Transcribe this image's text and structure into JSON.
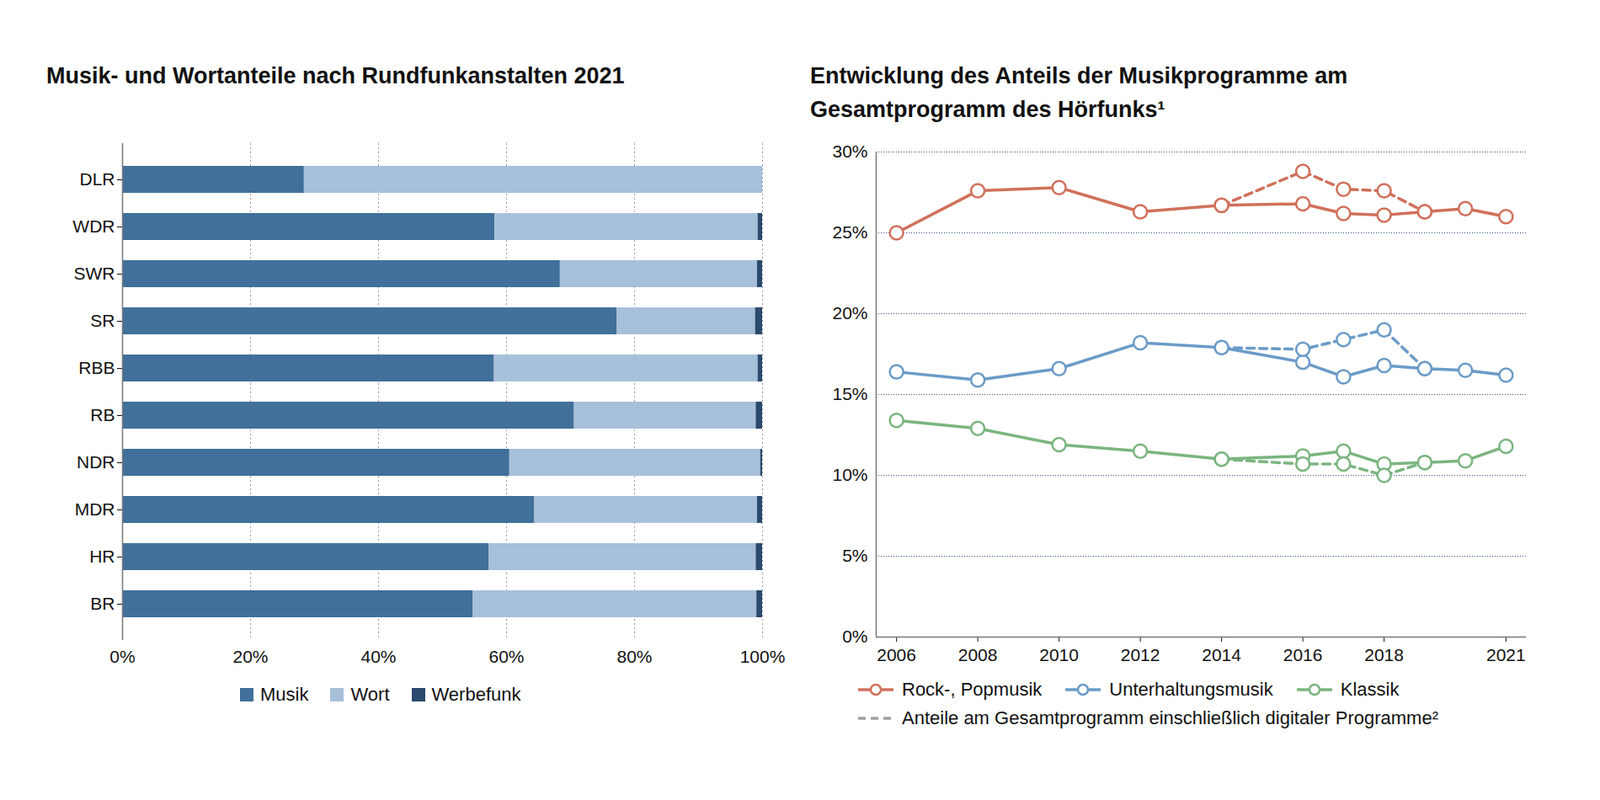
{
  "chart_data": [
    {
      "type": "bar",
      "title": "Musik- und Wortanteile nach Rundfunkanstalten 2021",
      "orientation": "horizontal",
      "stacked": true,
      "categories": [
        "DLR",
        "WDR",
        "SWR",
        "SR",
        "RBB",
        "RB",
        "NDR",
        "MDR",
        "HR",
        "BR"
      ],
      "series": [
        {
          "name": "Musik",
          "color": "#41709a",
          "values": [
            28.4,
            58.2,
            68.4,
            77.3,
            58.1,
            70.6,
            60.5,
            64.4,
            57.3,
            54.8
          ]
        },
        {
          "name": "Wort",
          "color": "#a7c0da",
          "values": [
            71.6,
            41.1,
            30.8,
            21.6,
            41.2,
            28.4,
            39.2,
            34.8,
            41.7,
            44.3
          ]
        },
        {
          "name": "Werbefunk",
          "color": "#2a4a6e",
          "values": [
            0,
            0.7,
            0.8,
            1.1,
            0.7,
            1.0,
            0.3,
            0.8,
            1.0,
            0.9
          ]
        }
      ],
      "xlim": [
        0,
        100
      ],
      "xticks": [
        {
          "value": 0,
          "label": "0%"
        },
        {
          "value": 20,
          "label": "20%"
        },
        {
          "value": 40,
          "label": "40%"
        },
        {
          "value": 60,
          "label": "60%"
        },
        {
          "value": 80,
          "label": "80%"
        },
        {
          "value": 100,
          "label": "100%"
        }
      ],
      "grid": true,
      "legend": "bottom"
    },
    {
      "type": "line",
      "title": "Entwicklung des Anteils der Musikprogramme am Gesamtprogramm des Hörfunks¹",
      "x": [
        2006,
        2008,
        2010,
        2012,
        2014,
        2016,
        2017,
        2018,
        2019,
        2020,
        2021
      ],
      "xlim": [
        2005.5,
        2021.5
      ],
      "xticks": [
        2006,
        2008,
        2010,
        2012,
        2014,
        2016,
        2018,
        2021
      ],
      "ylim": [
        0,
        30
      ],
      "yticks": [
        {
          "value": 0,
          "label": "0%"
        },
        {
          "value": 5,
          "label": "5%"
        },
        {
          "value": 10,
          "label": "10%"
        },
        {
          "value": 15,
          "label": "15%"
        },
        {
          "value": 20,
          "label": "20%"
        },
        {
          "value": 25,
          "label": "25%"
        },
        {
          "value": 30,
          "label": "30%"
        }
      ],
      "grid": true,
      "legend": "bottom",
      "series": [
        {
          "name": "Rock-, Popmusik",
          "color": "#d0705a",
          "marker": "circle",
          "line_style": "solid",
          "values": [
            25.0,
            27.6,
            27.8,
            26.3,
            26.7,
            26.8,
            26.2,
            26.1,
            26.3,
            26.5,
            26.0
          ],
          "digital_values": [
            null,
            null,
            null,
            null,
            26.7,
            28.8,
            27.7,
            27.6,
            26.3,
            null,
            null
          ]
        },
        {
          "name": "Unterhaltungsmusik",
          "color": "#6a9bc8",
          "marker": "circle",
          "line_style": "solid",
          "values": [
            16.4,
            15.9,
            16.6,
            18.2,
            17.9,
            17.0,
            16.1,
            16.8,
            16.6,
            16.5,
            16.2
          ],
          "digital_values": [
            null,
            null,
            null,
            null,
            17.9,
            17.8,
            18.4,
            19.0,
            16.6,
            null,
            null
          ]
        },
        {
          "name": "Klassik",
          "color": "#7ab57f",
          "marker": "circle",
          "line_style": "solid",
          "values": [
            13.4,
            12.9,
            11.9,
            11.5,
            11.0,
            11.2,
            11.5,
            10.7,
            10.8,
            10.9,
            11.8
          ],
          "digital_values": [
            null,
            null,
            null,
            null,
            11.0,
            10.7,
            10.7,
            10.0,
            10.8,
            null,
            null
          ]
        }
      ],
      "digital_legend": {
        "label": "Anteile am Gesamtprogramm einschließlich digitaler Programme²",
        "color": "#a0a0a0",
        "line_style": "dashed"
      }
    }
  ]
}
